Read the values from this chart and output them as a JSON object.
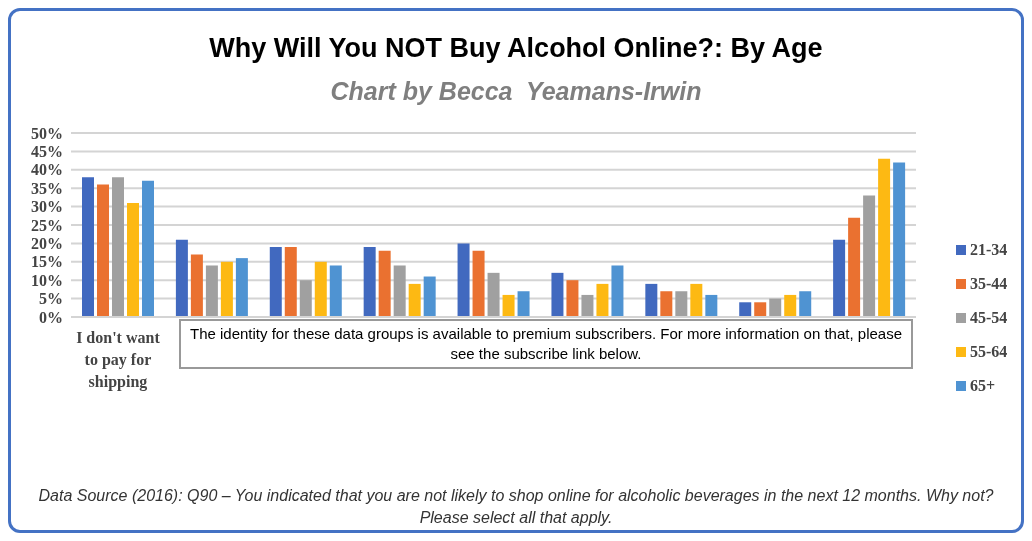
{
  "chart_data": {
    "type": "bar",
    "title": "Why Will You NOT Buy Alcohol Online?: By Age",
    "subtitle": "Chart by Becca  Yeamans-Irwin",
    "categories": [
      "I don't want to pay for shipping",
      null,
      null,
      null,
      null,
      null,
      null,
      null,
      null
    ],
    "series": [
      {
        "name": "21-34",
        "color": "#4169bf",
        "values": [
          38,
          21,
          19,
          19,
          20,
          12,
          9,
          4,
          21
        ]
      },
      {
        "name": "35-44",
        "color": "#ea7130",
        "values": [
          36,
          17,
          19,
          18,
          18,
          10,
          7,
          4,
          27
        ]
      },
      {
        "name": "45-54",
        "color": "#a0a0a0",
        "values": [
          38,
          14,
          10,
          14,
          12,
          6,
          7,
          5,
          33
        ]
      },
      {
        "name": "55-64",
        "color": "#fdb913",
        "values": [
          31,
          15,
          15,
          9,
          6,
          9,
          9,
          6,
          43
        ]
      },
      {
        "name": "65+",
        "color": "#4f93d2",
        "values": [
          37,
          16,
          14,
          11,
          7,
          14,
          6,
          7,
          42
        ]
      }
    ],
    "ylim": [
      0,
      50
    ],
    "yticks": [
      {
        "value": 0,
        "label": "0%"
      },
      {
        "value": 5,
        "label": "5%"
      },
      {
        "value": 10,
        "label": "10%"
      },
      {
        "value": 15,
        "label": "15%"
      },
      {
        "value": 20,
        "label": "20%"
      },
      {
        "value": 25,
        "label": "25%"
      },
      {
        "value": 30,
        "label": "30%"
      },
      {
        "value": 35,
        "label": "35%"
      },
      {
        "value": 40,
        "label": "40%"
      },
      {
        "value": 45,
        "label": "45%"
      },
      {
        "value": 50,
        "label": "50%"
      }
    ],
    "grid": "y",
    "legend": "right",
    "annotations": [
      "The identity for these data groups is available to premium subscribers. For more information on that, please see the subscribe link below.",
      "Data Source (2016): Q90 – You indicated that you are not likely to shop online for alcoholic beverages in the next 12 months. Why not? Please select all that apply."
    ]
  }
}
